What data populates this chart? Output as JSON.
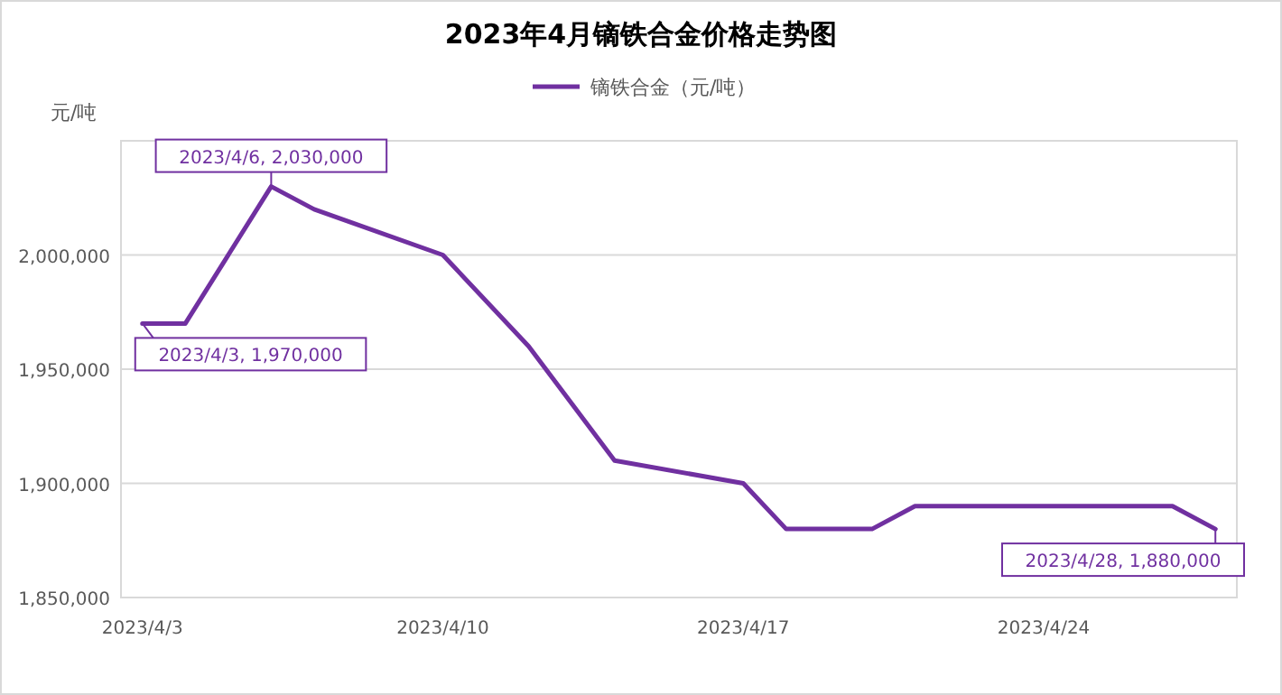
{
  "chart_data": {
    "type": "line",
    "title": "2023年4月镝铁合金价格走势图",
    "ylabel": "元/吨",
    "legend": "top",
    "grid": "y",
    "marker": "none",
    "line_style": "solid",
    "xlim": [
      "2023-04-02T12:00",
      "2023-04-28T12:00"
    ],
    "xticks": [
      {
        "value": "2023-04-03",
        "label": "2023/4/3"
      },
      {
        "value": "2023-04-10",
        "label": "2023/4/10"
      },
      {
        "value": "2023-04-17",
        "label": "2023/4/17"
      },
      {
        "value": "2023-04-24",
        "label": "2023/4/24"
      }
    ],
    "ylim": [
      1850000,
      2050000
    ],
    "yticks": [
      {
        "value": 1850000,
        "label": "1,850,000"
      },
      {
        "value": 1900000,
        "label": "1,900,000"
      },
      {
        "value": 1950000,
        "label": "1,950,000"
      },
      {
        "value": 2000000,
        "label": "2,000,000"
      },
      {
        "value": 2050000,
        "label": null
      }
    ],
    "x": [
      "2023-04-03",
      "2023-04-04",
      "2023-04-06",
      "2023-04-07",
      "2023-04-10",
      "2023-04-12",
      "2023-04-14",
      "2023-04-17",
      "2023-04-18",
      "2023-04-20",
      "2023-04-21",
      "2023-04-27",
      "2023-04-28"
    ],
    "series": [
      {
        "name": "镝铁合金（元/吨）",
        "color": "#7030a0",
        "values": [
          1970000,
          1970000,
          2030000,
          2020000,
          2000000,
          1960000,
          1910000,
          1900000,
          1880000,
          1880000,
          1890000,
          1890000,
          1880000
        ]
      }
    ],
    "annotations": [
      {
        "text": "2023/4/3, 1,970,000",
        "x": "2023-04-03",
        "y": 1970000
      },
      {
        "text": "2023/4/6, 2,030,000",
        "x": "2023-04-06",
        "y": 2030000
      },
      {
        "text": "2023/4/28, 1,880,000",
        "x": "2023-04-28",
        "y": 1880000
      }
    ]
  }
}
